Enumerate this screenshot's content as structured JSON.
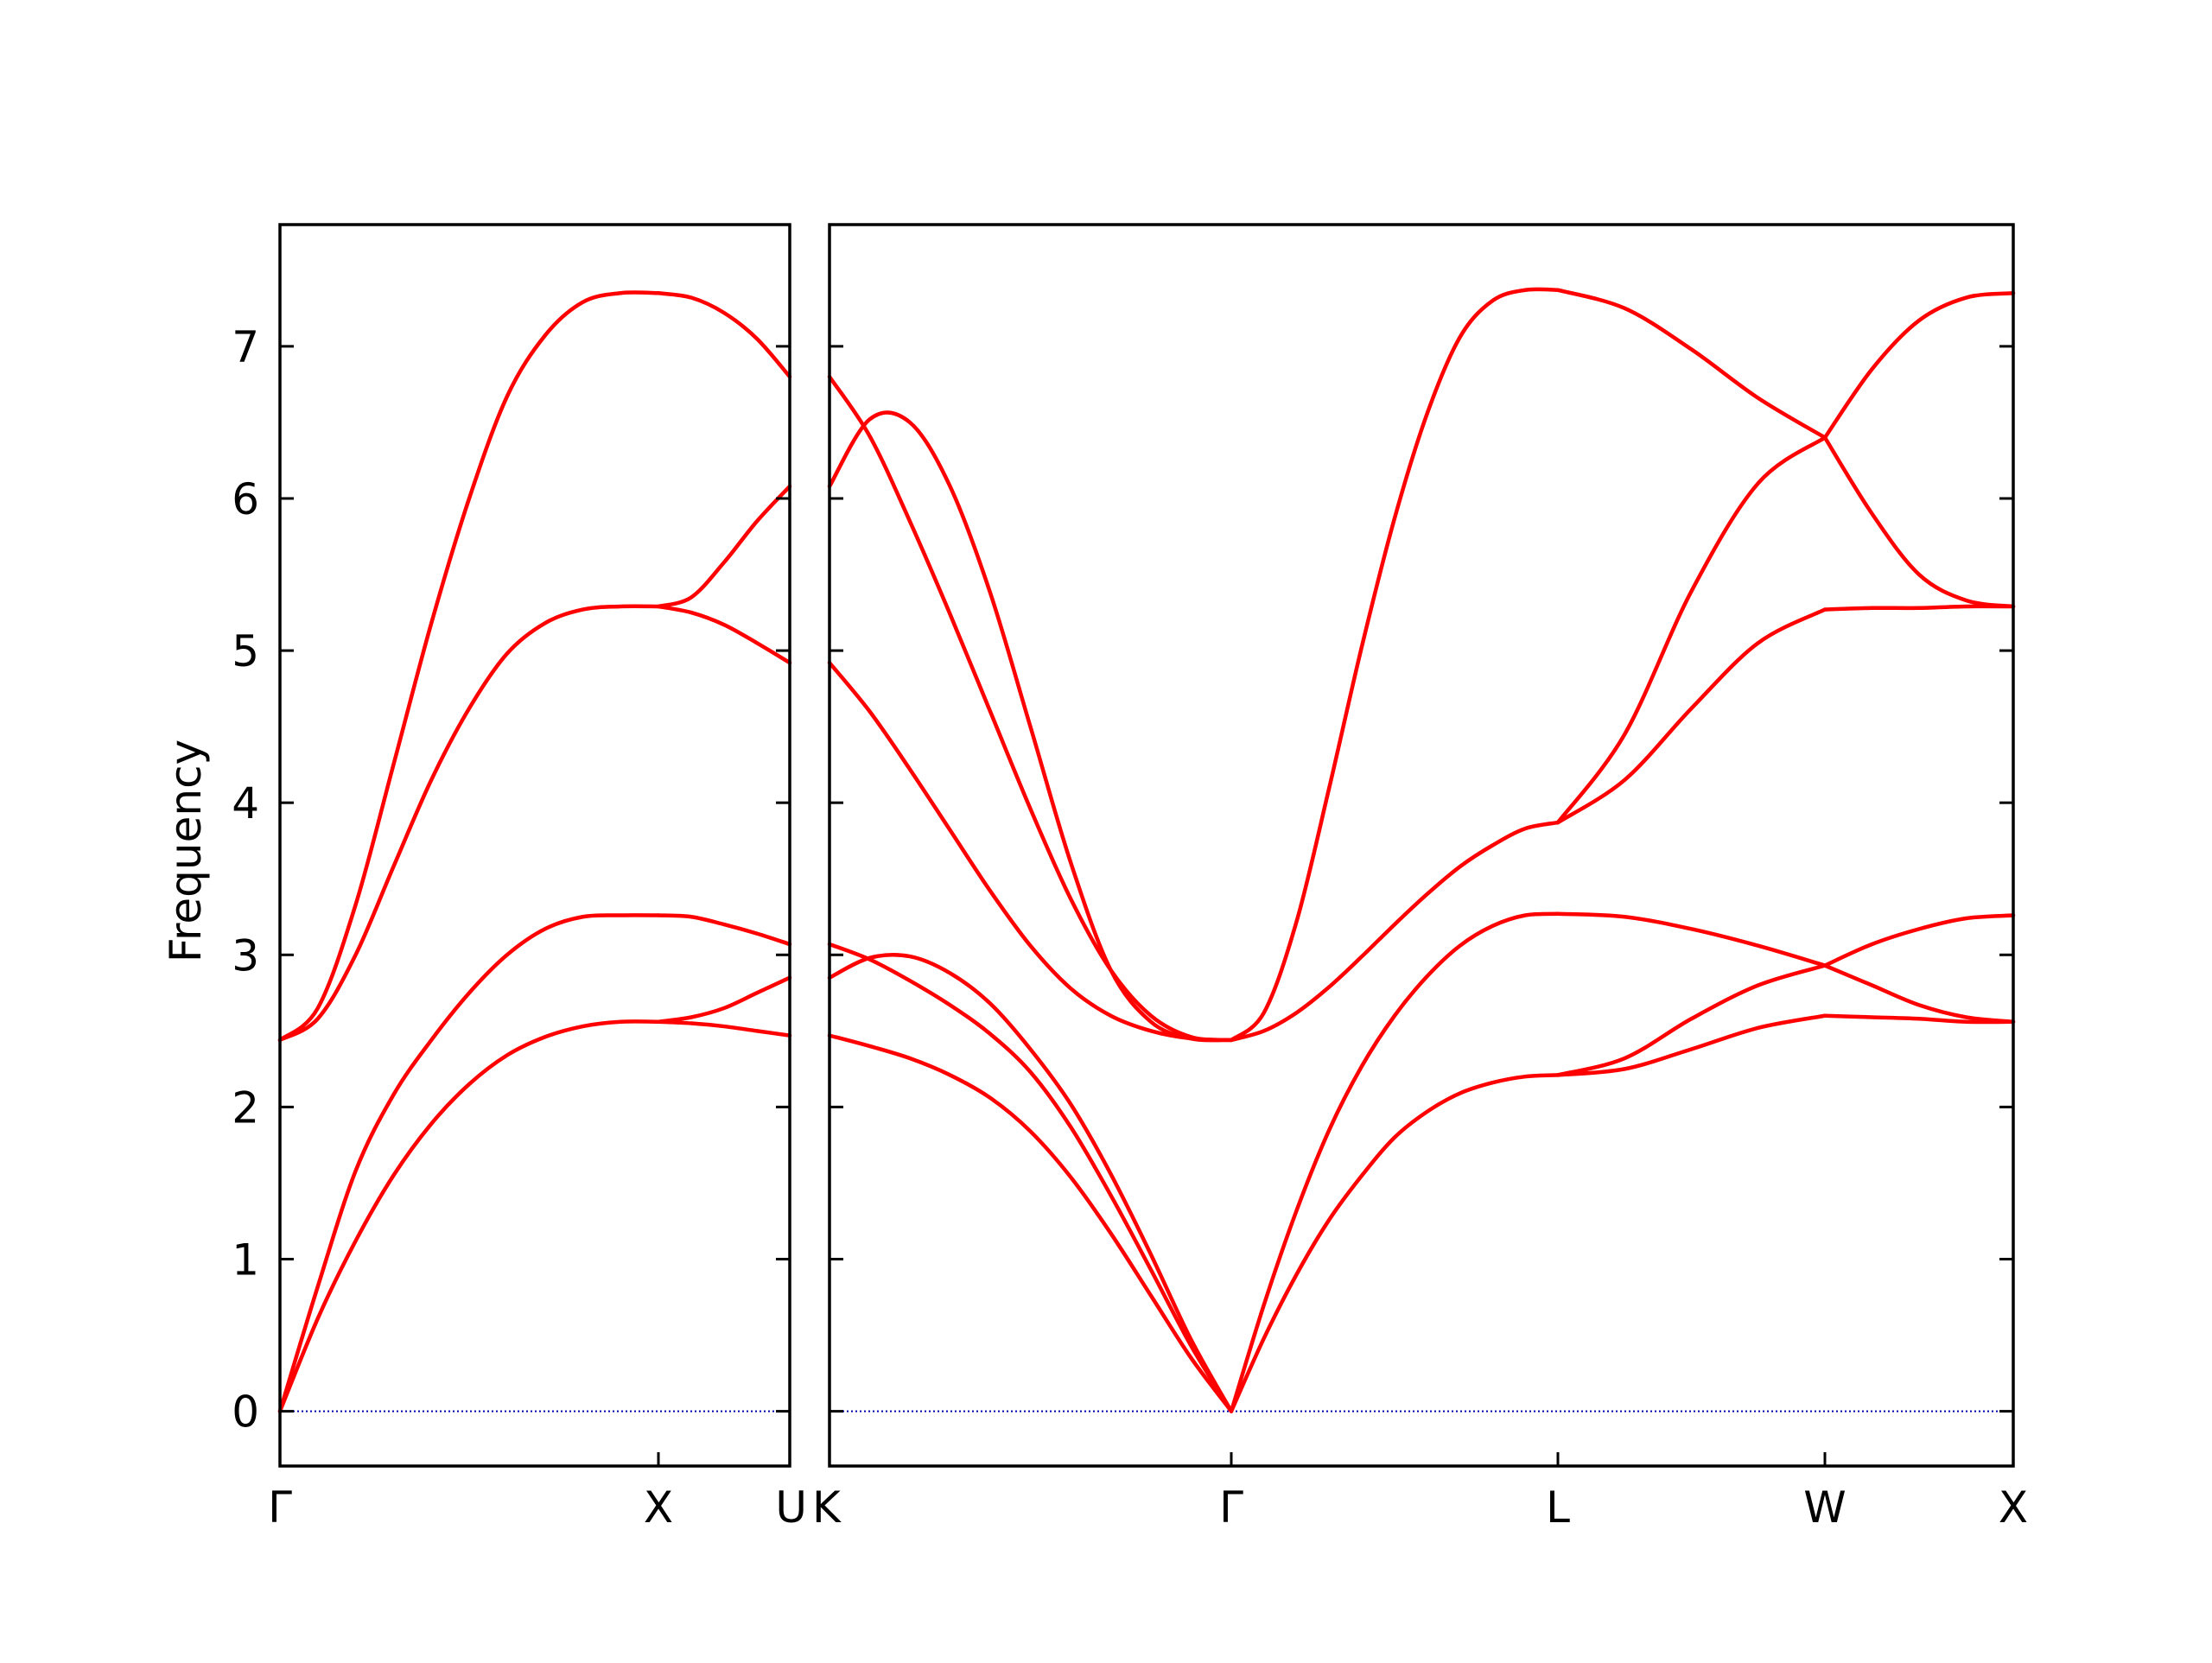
{
  "chart_data": {
    "type": "line",
    "title": "",
    "xlabel": "",
    "ylabel": "Frequency",
    "ylim": [
      -0.36,
      7.8
    ],
    "yticks": [
      0,
      1,
      2,
      3,
      4,
      5,
      6,
      7
    ],
    "grid": false,
    "legend": "none",
    "colors": {
      "band": "#ff0000",
      "zero_line": "#0000aa",
      "axes": "#000000"
    },
    "panels": [
      {
        "id": "left",
        "labels": [
          "Γ",
          "X",
          "U"
        ],
        "segments": [
          {
            "from": "Γ",
            "to": "X",
            "x": [
              0,
              0.1,
              0.2,
              0.3,
              0.4,
              0.5,
              0.6,
              0.7,
              0.8,
              0.9,
              1.0
            ],
            "bands": [
              [
                0,
                0.61,
                1.12,
                1.55,
                1.89,
                2.15,
                2.34,
                2.46,
                2.53,
                2.56,
                2.56
              ],
              [
                0,
                0.82,
                1.58,
                2.08,
                2.44,
                2.75,
                3.0,
                3.17,
                3.25,
                3.26,
                3.26
              ],
              [
                2.44,
                2.58,
                3.0,
                3.58,
                4.15,
                4.62,
                4.98,
                5.18,
                5.27,
                5.29,
                5.29
              ],
              [
                2.44,
                2.65,
                3.33,
                4.25,
                5.18,
                6.0,
                6.67,
                7.07,
                7.29,
                7.35,
                7.35
              ]
            ]
          },
          {
            "from": "X",
            "to": "U",
            "x": [
              0,
              0.25,
              0.5,
              0.75,
              1.0
            ],
            "bands": [
              [
                2.56,
                2.55,
                2.53,
                2.5,
                2.47
              ],
              [
                2.56,
                2.59,
                2.65,
                2.75,
                2.85
              ],
              [
                3.26,
                3.25,
                3.2,
                3.14,
                3.07
              ],
              [
                5.29,
                5.25,
                5.17,
                5.05,
                4.92
              ],
              [
                5.29,
                5.35,
                5.58,
                5.85,
                6.08
              ],
              [
                7.35,
                7.32,
                7.22,
                7.05,
                6.8
              ]
            ]
          }
        ]
      },
      {
        "id": "right",
        "labels": [
          "K",
          "Γ",
          "L",
          "W",
          "X"
        ],
        "segments": [
          {
            "from": "K",
            "to": "Γ",
            "x": [
              0,
              0.1,
              0.2,
              0.3,
              0.4,
              0.5,
              0.6,
              0.7,
              0.8,
              0.9,
              1.0
            ],
            "bands": [
              [
                2.47,
                2.4,
                2.32,
                2.21,
                2.06,
                1.84,
                1.54,
                1.17,
                0.76,
                0.35,
                0
              ],
              [
                3.07,
                2.97,
                2.83,
                2.67,
                2.48,
                2.23,
                1.87,
                1.42,
                0.93,
                0.43,
                0
              ],
              [
                2.85,
                2.98,
                2.99,
                2.88,
                2.68,
                2.38,
                2.02,
                1.56,
                1.03,
                0.47,
                0
              ],
              [
                4.92,
                4.6,
                4.22,
                3.82,
                3.42,
                3.06,
                2.78,
                2.6,
                2.5,
                2.45,
                2.44
              ],
              [
                6.8,
                6.41,
                5.85,
                5.24,
                4.6,
                3.96,
                3.37,
                2.9,
                2.6,
                2.46,
                2.44
              ],
              [
                6.08,
                6.52,
                6.5,
                6.08,
                5.38,
                4.5,
                3.61,
                2.9,
                2.56,
                2.45,
                2.44
              ]
            ]
          },
          {
            "from": "Γ",
            "to": "L",
            "x": [
              0,
              0.1,
              0.2,
              0.3,
              0.4,
              0.5,
              0.6,
              0.7,
              0.8,
              0.9,
              1.0
            ],
            "bands": [
              [
                0,
                0.48,
                0.9,
                1.26,
                1.55,
                1.8,
                1.97,
                2.09,
                2.16,
                2.2,
                2.21
              ],
              [
                0,
                0.7,
                1.32,
                1.85,
                2.27,
                2.6,
                2.86,
                3.06,
                3.19,
                3.26,
                3.27
              ],
              [
                2.44,
                2.5,
                2.62,
                2.79,
                2.99,
                3.2,
                3.4,
                3.58,
                3.72,
                3.83,
                3.87
              ],
              [
                2.44,
                2.62,
                3.22,
                4.1,
                5.03,
                5.87,
                6.56,
                7.06,
                7.3,
                7.37,
                7.37
              ]
            ]
          },
          {
            "from": "L",
            "to": "W",
            "x": [
              0,
              0.25,
              0.5,
              0.75,
              1.0
            ],
            "bands": [
              [
                2.21,
                2.25,
                2.38,
                2.52,
                2.6
              ],
              [
                2.21,
                2.32,
                2.58,
                2.8,
                2.93
              ],
              [
                3.27,
                3.25,
                3.17,
                3.06,
                2.93
              ],
              [
                3.87,
                4.15,
                4.62,
                5.05,
                5.27
              ],
              [
                3.87,
                4.45,
                5.39,
                6.1,
                6.4
              ],
              [
                7.37,
                7.25,
                6.98,
                6.66,
                6.4
              ]
            ]
          },
          {
            "from": "W",
            "to": "X",
            "x": [
              0,
              0.25,
              0.5,
              0.75,
              1.0
            ],
            "bands": [
              [
                2.6,
                2.59,
                2.58,
                2.56,
                2.56
              ],
              [
                2.93,
                2.8,
                2.67,
                2.59,
                2.56
              ],
              [
                2.93,
                3.07,
                3.17,
                3.24,
                3.26
              ],
              [
                5.27,
                5.28,
                5.28,
                5.29,
                5.29
              ],
              [
                6.4,
                5.9,
                5.5,
                5.33,
                5.29
              ],
              [
                6.4,
                6.85,
                7.17,
                7.32,
                7.35
              ]
            ]
          }
        ]
      }
    ]
  }
}
